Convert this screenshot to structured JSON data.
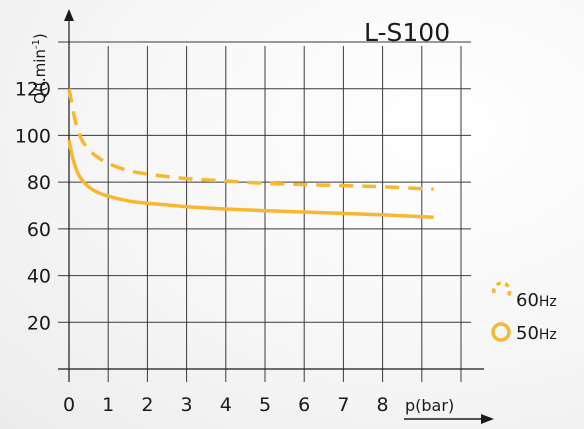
{
  "chart_data": {
    "type": "line",
    "title": "L-S100",
    "xlabel": "p(bar)",
    "ylabel_main": "Q(l.min",
    "ylabel_sup": "-1",
    "ylabel_close": ")",
    "xlim": [
      0,
      10
    ],
    "ylim": [
      0,
      140
    ],
    "x_ticks": [
      0,
      1,
      2,
      3,
      4,
      5,
      6,
      7,
      8
    ],
    "y_ticks": [
      20,
      40,
      60,
      80,
      100,
      120
    ],
    "grid": true,
    "legend_position": "bottom-right",
    "series": [
      {
        "name": "60Hz",
        "name_main": "60",
        "name_unit": "Hz",
        "style": "dashed",
        "color": "#f7b731",
        "x": [
          0,
          0.15,
          0.3,
          0.5,
          0.75,
          1,
          1.5,
          2,
          3,
          4,
          5,
          6,
          7,
          8,
          9.3
        ],
        "y": [
          120,
          107,
          99,
          94,
          90.5,
          88,
          85,
          83.5,
          81.5,
          80.5,
          79.5,
          79,
          78.5,
          78,
          77
        ]
      },
      {
        "name": "50Hz",
        "name_main": "50",
        "name_unit": "Hz",
        "style": "solid",
        "color": "#f7b731",
        "x": [
          0,
          0.1,
          0.25,
          0.5,
          0.75,
          1,
          1.5,
          2,
          3,
          4,
          5,
          6,
          7,
          8,
          9.3
        ],
        "y": [
          98,
          90,
          83,
          78,
          75.5,
          74,
          72,
          71,
          69.5,
          68.5,
          67.8,
          67.2,
          66.6,
          66,
          65
        ]
      }
    ]
  }
}
